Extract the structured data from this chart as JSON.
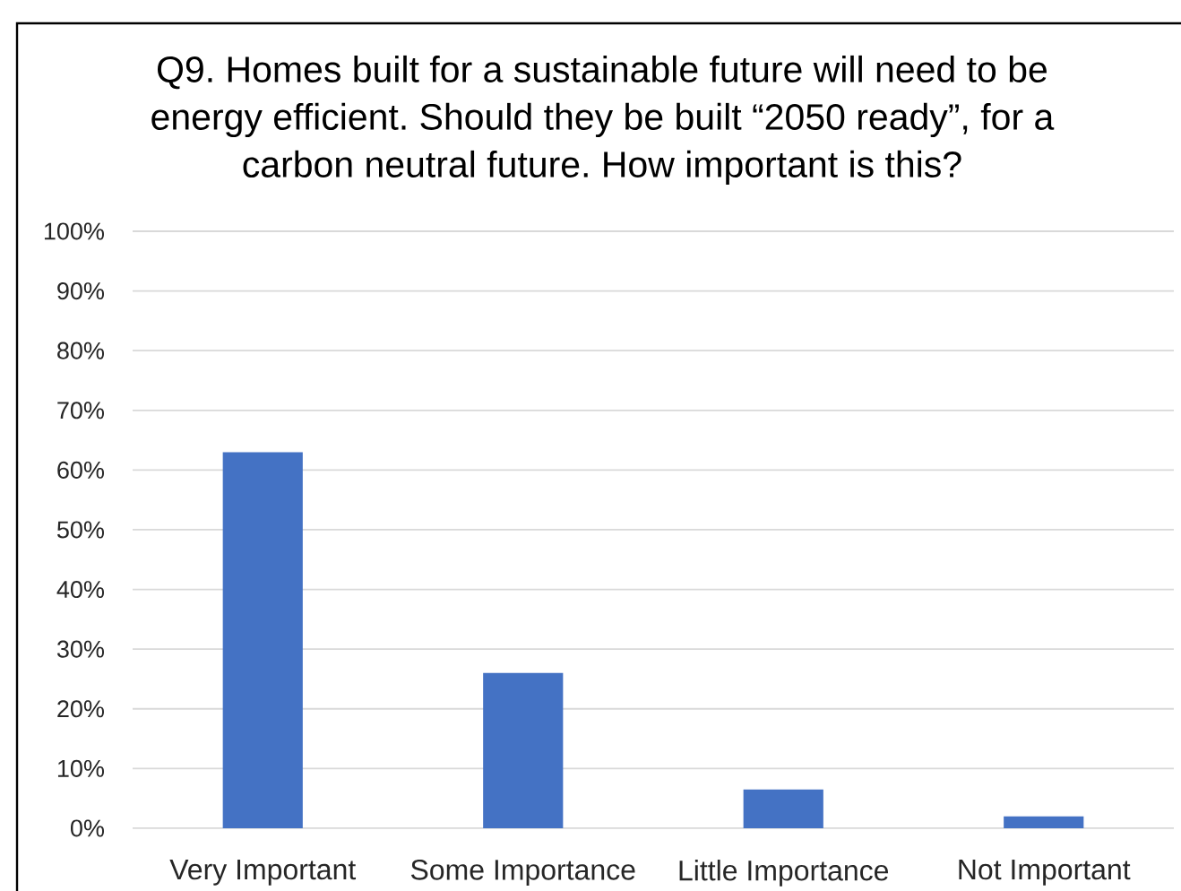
{
  "chart_data": {
    "type": "bar",
    "title": "Q9. Homes built for a sustainable future will need to be energy efficient. Should they be built “2050 ready”, for a carbon neutral future. How important is this?",
    "categories": [
      "Very Important",
      "Some Importance",
      "Little Importance",
      "Not Important"
    ],
    "values": [
      63,
      26,
      6.5,
      2
    ],
    "color": "#4472c4",
    "ylim": [
      0,
      100
    ],
    "yticks": [
      {
        "value": 0,
        "label": "0%"
      },
      {
        "value": 10,
        "label": "10%"
      },
      {
        "value": 20,
        "label": "20%"
      },
      {
        "value": 30,
        "label": "30%"
      },
      {
        "value": 40,
        "label": "40%"
      },
      {
        "value": 50,
        "label": "50%"
      },
      {
        "value": 60,
        "label": "60%"
      },
      {
        "value": 70,
        "label": "70%"
      },
      {
        "value": 80,
        "label": "80%"
      },
      {
        "value": 90,
        "label": "90%"
      },
      {
        "value": 100,
        "label": "100%"
      }
    ],
    "grid": "y"
  }
}
